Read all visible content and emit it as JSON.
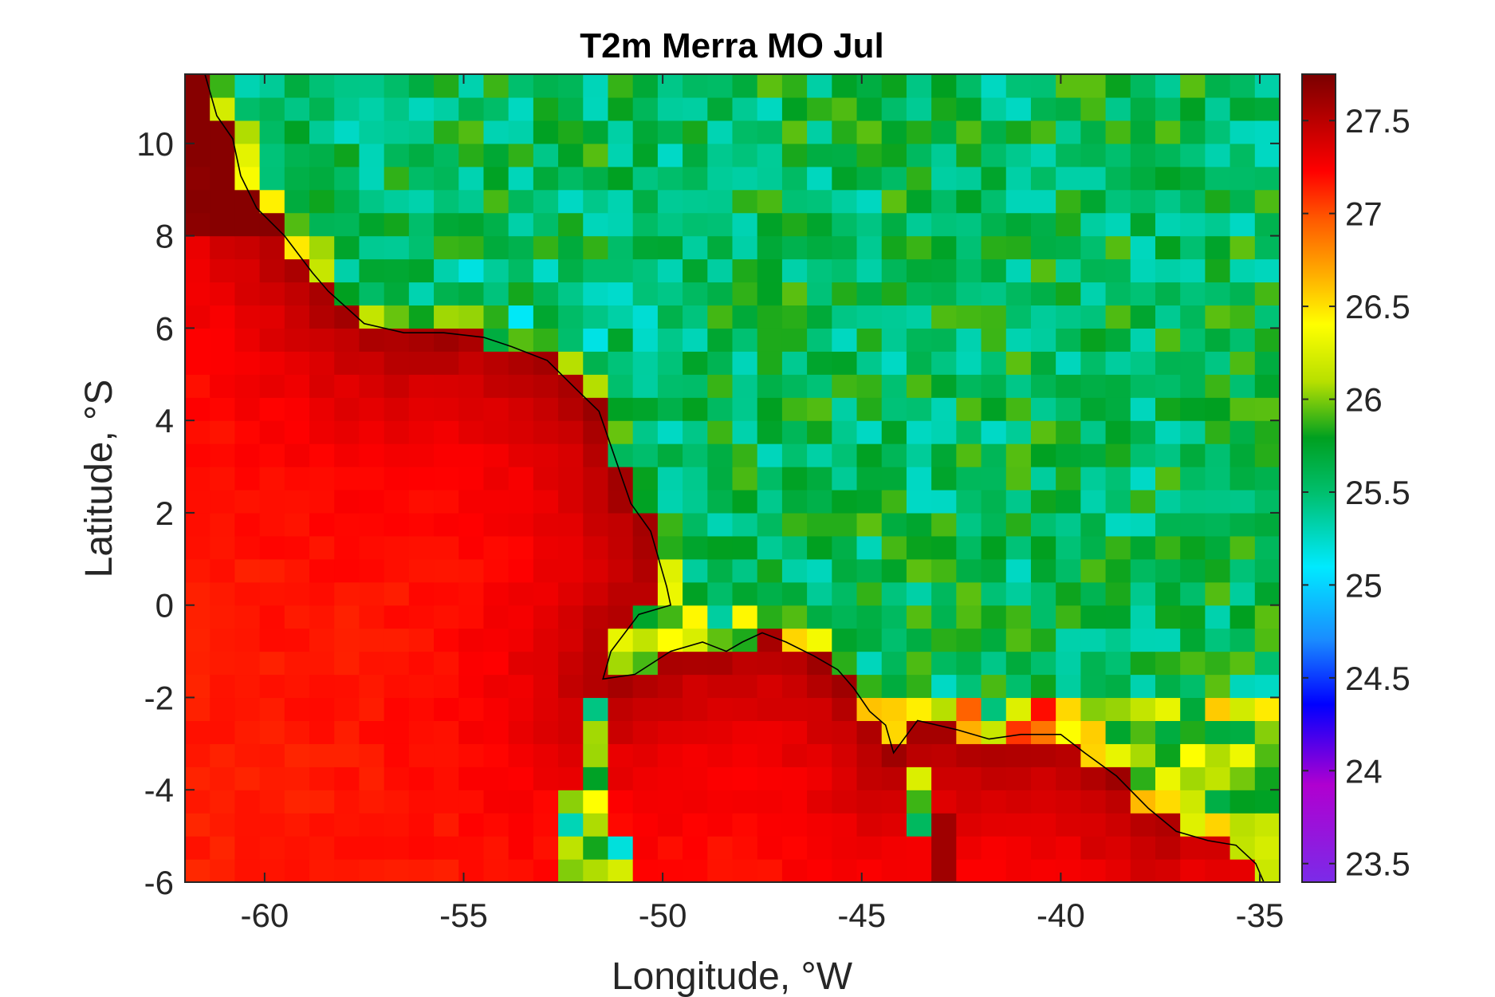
{
  "chart_data": {
    "type": "heatmap",
    "title": "T2m Merra MO Jul",
    "xlabel": "Longitude, °W",
    "ylabel": "Latitude, °S",
    "xlim": [
      -62,
      -34.5
    ],
    "ylim": [
      -6,
      11.5
    ],
    "xticks": [
      -60,
      -55,
      -50,
      -45,
      -40,
      -35
    ],
    "xtick_labels": [
      "-60",
      "-55",
      "-50",
      "-45",
      "-40",
      "-35"
    ],
    "yticks": [
      -6,
      -4,
      -2,
      0,
      2,
      4,
      6,
      8,
      10
    ],
    "ytick_labels": [
      "-6",
      "-4",
      "-2",
      "0",
      "2",
      "4",
      "6",
      "8",
      "10"
    ],
    "colorbar": {
      "limits": [
        23.4,
        27.75
      ],
      "ticks": [
        23.5,
        24,
        24.5,
        25,
        25.5,
        26,
        26.5,
        27,
        27.5
      ],
      "tick_labels": [
        "23.5",
        "24",
        "24.5",
        "25",
        "25.5",
        "26",
        "26.5",
        "27",
        "27.5"
      ],
      "colormap": "jet-like (purple-blue-cyan-green-yellow-orange-red-darkred)"
    },
    "grid": {
      "lon_start": -62,
      "lon_step": 0.625,
      "cols": 44,
      "lat_start": -6,
      "lat_step": 0.5,
      "rows": 35,
      "cell_value_model": "approximate temperature field in °C read from colors (ocean warm ~26.5-27.7, land cool ~23.5-26)"
    },
    "overlay": "coastline",
    "grid_lines": false,
    "legend": "colorbar-right"
  }
}
